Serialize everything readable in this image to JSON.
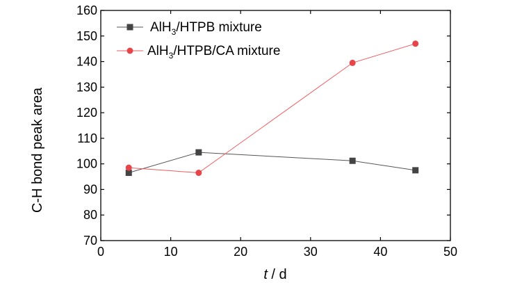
{
  "chart_data": {
    "type": "line",
    "title": "",
    "xlabel_italic": "t",
    "xlabel_unit": " / d",
    "ylabel": "C-H bond peak area",
    "xlim": [
      0,
      50
    ],
    "ylim": [
      70,
      160
    ],
    "xticks": [
      0,
      10,
      20,
      30,
      40,
      50
    ],
    "yticks": [
      70,
      80,
      90,
      100,
      110,
      120,
      130,
      140,
      150,
      160
    ],
    "grid": false,
    "legend_position": "top-left",
    "series": [
      {
        "name_prefix": "AlH",
        "name_sub": "3",
        "name_suffix": "/HTPB mixture",
        "marker": "square",
        "color": "#444444",
        "line_color": "#555555",
        "x": [
          4,
          14,
          36,
          45
        ],
        "y": [
          96.5,
          104.5,
          101.2,
          97.5
        ]
      },
      {
        "name_prefix": "AlH",
        "name_sub": "3",
        "name_suffix": "/HTPB/CA mixture",
        "marker": "circle",
        "color": "#e8454a",
        "line_color": "#ee5a5e",
        "x": [
          4,
          14,
          36,
          45
        ],
        "y": [
          98.5,
          96.5,
          139.5,
          147
        ]
      }
    ]
  }
}
